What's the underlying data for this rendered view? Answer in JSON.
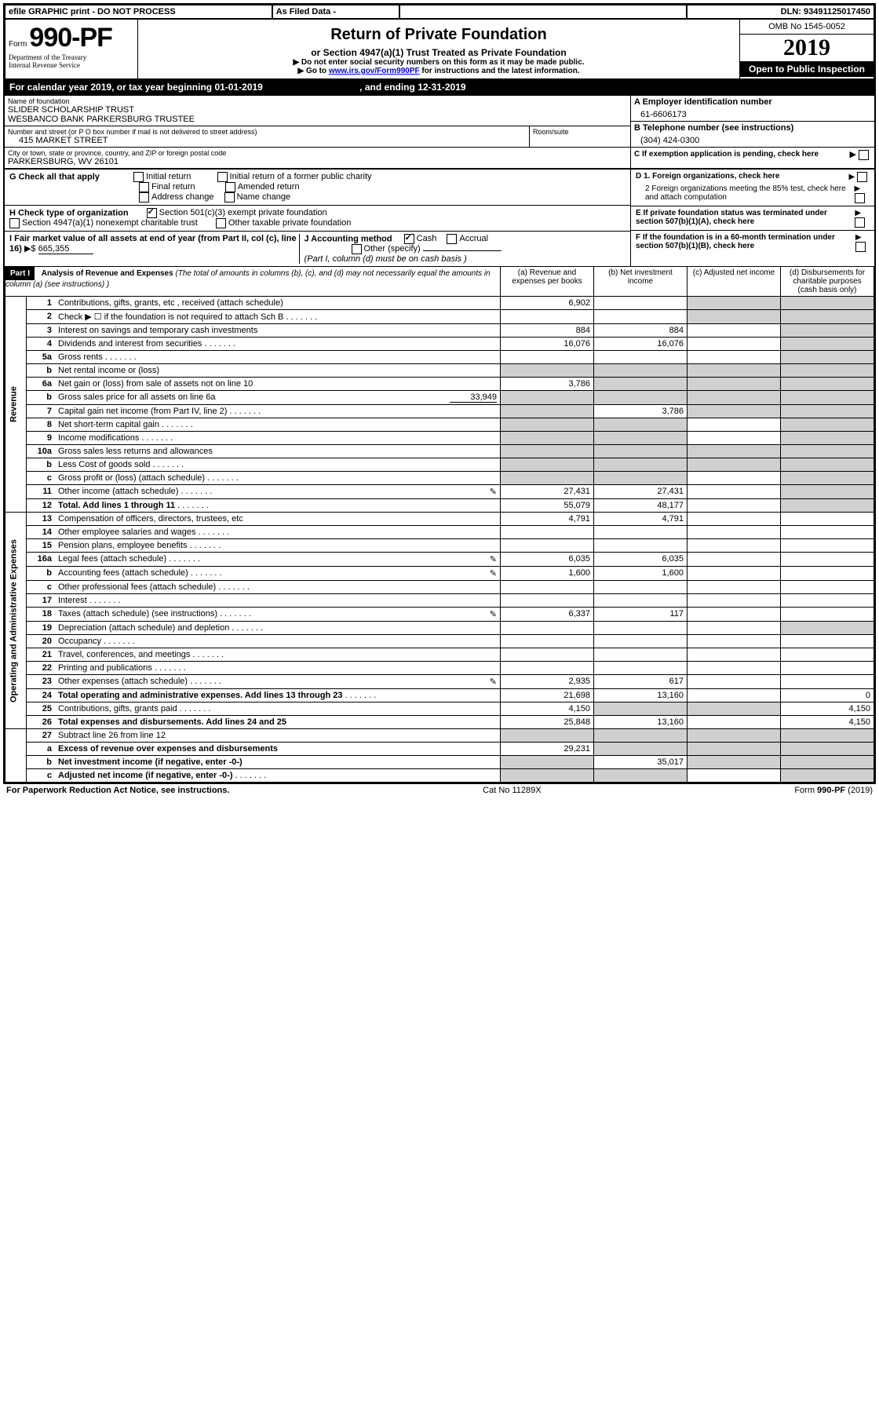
{
  "top": {
    "efile": "efile GRAPHIC print - DO NOT PROCESS",
    "asfiled": "As Filed Data -",
    "dln_label": "DLN: ",
    "dln": "93491125017450"
  },
  "header": {
    "form_prefix": "Form",
    "form_no": "990-PF",
    "dept1": "Department of the Treasury",
    "dept2": "Internal Revenue Service",
    "title": "Return of Private Foundation",
    "subtitle": "or Section 4947(a)(1) Trust Treated as Private Foundation",
    "instr1": "▶ Do not enter social security numbers on this form as it may be made public.",
    "instr2_pre": "▶ Go to ",
    "instr2_link": "www.irs.gov/Form990PF",
    "instr2_post": " for instructions and the latest information.",
    "omb": "OMB No 1545-0052",
    "year": "2019",
    "open": "Open to Public Inspection"
  },
  "calyear": {
    "pre": "For calendar year 2019, or tax year beginning ",
    "begin": "01-01-2019",
    "mid": " , and ending ",
    "end": "12-31-2019"
  },
  "entity": {
    "name_label": "Name of foundation",
    "name1": "SLIDER SCHOLARSHIP TRUST",
    "name2": "WESBANCO BANK PARKERSBURG TRUSTEE",
    "street_label": "Number and street (or P O  box number if mail is not delivered to street address)",
    "street": "415 MARKET STREET",
    "room_label": "Room/suite",
    "city_label": "City or town, state or province, country, and ZIP or foreign postal code",
    "city": "PARKERSBURG, WV  26101",
    "A_label": "A Employer identification number",
    "A": "61-6606173",
    "B_label": "B Telephone number (see instructions)",
    "B": "(304) 424-0300",
    "C_label": "C If exemption application is pending, check here"
  },
  "G": {
    "label": "G Check all that apply",
    "opts": [
      "Initial return",
      "Initial return of a former public charity",
      "Final return",
      "Amended return",
      "Address change",
      "Name change"
    ]
  },
  "H": {
    "label": "H Check type of organization",
    "o1": "Section 501(c)(3) exempt private foundation",
    "o2": "Section 4947(a)(1) nonexempt charitable trust",
    "o3": "Other taxable private foundation"
  },
  "D": {
    "d1": "D 1. Foreign organizations, check here",
    "d2": "2  Foreign organizations meeting the 85% test, check here and attach computation"
  },
  "E": "E  If private foundation status was terminated under section 507(b)(1)(A), check here",
  "F": "F  If the foundation is in a 60-month termination under section 507(b)(1)(B), check here",
  "I": {
    "label": "I Fair market value of all assets at end of year (from Part II, col  (c), line 16)",
    "arrow": "▶$",
    "val": "665,355"
  },
  "J": {
    "label": "J Accounting method",
    "cash": "Cash",
    "accrual": "Accrual",
    "other": "Other (specify)",
    "note": "(Part I, column (d) must be on cash basis )"
  },
  "part1": {
    "title": "Part I",
    "heading": "Analysis of Revenue and Expenses",
    "heading_note": " (The total of amounts in columns (b), (c), and (d) may not necessarily equal the amounts in column (a) (see instructions) )",
    "col_a": "(a) Revenue and expenses per books",
    "col_b": "(b) Net investment income",
    "col_c": "(c) Adjusted net income",
    "col_d": "(d) Disbursements for charitable purposes (cash basis only)"
  },
  "revenue_label": "Revenue",
  "expense_label": "Operating and Administrative Expenses",
  "rows": [
    {
      "n": "1",
      "d": "Contributions, gifts, grants, etc , received (attach schedule)",
      "a": "6,902",
      "shade_c": true,
      "shade_d": true
    },
    {
      "n": "2",
      "d": "Check ▶ ☐ if the foundation is not required to attach Sch  B",
      "dots": true,
      "a": "",
      "shade_c": true,
      "shade_d": true
    },
    {
      "n": "3",
      "d": "Interest on savings and temporary cash investments",
      "a": "884",
      "b": "884",
      "shade_d": true
    },
    {
      "n": "4",
      "d": "Dividends and interest from securities",
      "dots": true,
      "a": "16,076",
      "b": "16,076",
      "shade_d": true
    },
    {
      "n": "5a",
      "d": "Gross rents",
      "dots": true,
      "shade_d": true
    },
    {
      "n": "b",
      "d": "Net rental income or (loss)",
      "shade_a": true,
      "shade_b": true,
      "shade_c": true,
      "shade_d": true
    },
    {
      "n": "6a",
      "d": "Net gain or (loss) from sale of assets not on line 10",
      "a": "3,786",
      "shade_b": true,
      "shade_c": true,
      "shade_d": true
    },
    {
      "n": "b",
      "d": "Gross sales price for all assets on line 6a",
      "val": "33,949",
      "shade_a": true,
      "shade_b": true,
      "shade_c": true,
      "shade_d": true
    },
    {
      "n": "7",
      "d": "Capital gain net income (from Part IV, line 2)",
      "dots": true,
      "shade_a": true,
      "b": "3,786",
      "shade_c": true,
      "shade_d": true
    },
    {
      "n": "8",
      "d": "Net short-term capital gain",
      "dots": true,
      "shade_a": true,
      "shade_b": true,
      "shade_d": true
    },
    {
      "n": "9",
      "d": "Income modifications",
      "dots": true,
      "shade_a": true,
      "shade_b": true,
      "shade_d": true
    },
    {
      "n": "10a",
      "d": "Gross sales less returns and allowances",
      "shade_a": true,
      "shade_b": true,
      "shade_c": true,
      "shade_d": true
    },
    {
      "n": "b",
      "d": "Less  Cost of goods sold",
      "dots": true,
      "shade_a": true,
      "shade_b": true,
      "shade_c": true,
      "shade_d": true
    },
    {
      "n": "c",
      "d": "Gross profit or (loss) (attach schedule)",
      "dots": true,
      "shade_a": true,
      "shade_b": true,
      "shade_d": true
    },
    {
      "n": "11",
      "d": "Other income (attach schedule)",
      "dots": true,
      "icon": true,
      "a": "27,431",
      "b": "27,431",
      "shade_d": true
    },
    {
      "n": "12",
      "d": "Total. Add lines 1 through 11",
      "bold": true,
      "dots": true,
      "a": "55,079",
      "b": "48,177",
      "shade_d": true
    }
  ],
  "exp_rows": [
    {
      "n": "13",
      "d": "Compensation of officers, directors, trustees, etc",
      "a": "4,791",
      "b": "4,791"
    },
    {
      "n": "14",
      "d": "Other employee salaries and wages",
      "dots": true
    },
    {
      "n": "15",
      "d": "Pension plans, employee benefits",
      "dots": true
    },
    {
      "n": "16a",
      "d": "Legal fees (attach schedule)",
      "dots": true,
      "icon": true,
      "a": "6,035",
      "b": "6,035"
    },
    {
      "n": "b",
      "d": "Accounting fees (attach schedule)",
      "dots": true,
      "icon": true,
      "a": "1,600",
      "b": "1,600"
    },
    {
      "n": "c",
      "d": "Other professional fees (attach schedule)",
      "dots": true
    },
    {
      "n": "17",
      "d": "Interest",
      "dots": true
    },
    {
      "n": "18",
      "d": "Taxes (attach schedule) (see instructions)",
      "dots": true,
      "icon": true,
      "a": "6,337",
      "b": "117"
    },
    {
      "n": "19",
      "d": "Depreciation (attach schedule) and depletion",
      "dots": true,
      "shade_d": true
    },
    {
      "n": "20",
      "d": "Occupancy",
      "dots": true
    },
    {
      "n": "21",
      "d": "Travel, conferences, and meetings",
      "dots": true
    },
    {
      "n": "22",
      "d": "Printing and publications",
      "dots": true
    },
    {
      "n": "23",
      "d": "Other expenses (attach schedule)",
      "dots": true,
      "icon": true,
      "a": "2,935",
      "b": "617"
    },
    {
      "n": "24",
      "d": "Total operating and administrative expenses. Add lines 13 through 23",
      "bold": true,
      "dots": true,
      "a": "21,698",
      "b": "13,160",
      "dv": "0"
    },
    {
      "n": "25",
      "d": "Contributions, gifts, grants paid",
      "dots": true,
      "a": "4,150",
      "shade_b": true,
      "shade_c": true,
      "dv": "4,150"
    },
    {
      "n": "26",
      "d": "Total expenses and disbursements. Add lines 24 and 25",
      "bold": true,
      "a": "25,848",
      "b": "13,160",
      "dv": "4,150"
    }
  ],
  "bottom_rows": [
    {
      "n": "27",
      "d": "Subtract line 26 from line 12",
      "shade_a": true,
      "shade_b": true,
      "shade_c": true,
      "shade_d": true
    },
    {
      "n": "a",
      "d": "Excess of revenue over expenses and disbursements",
      "bold": true,
      "a": "29,231",
      "shade_b": true,
      "shade_c": true,
      "shade_d": true
    },
    {
      "n": "b",
      "d": "Net investment income (if negative, enter -0-)",
      "bold": true,
      "shade_a": true,
      "b": "35,017",
      "shade_c": true,
      "shade_d": true
    },
    {
      "n": "c",
      "d": "Adjusted net income (if negative, enter -0-)",
      "bold": true,
      "dots": true,
      "shade_a": true,
      "shade_b": true,
      "shade_d": true
    }
  ],
  "footer": {
    "left": "For Paperwork Reduction Act Notice, see instructions.",
    "center": "Cat  No  11289X",
    "right": "Form 990-PF (2019)"
  }
}
